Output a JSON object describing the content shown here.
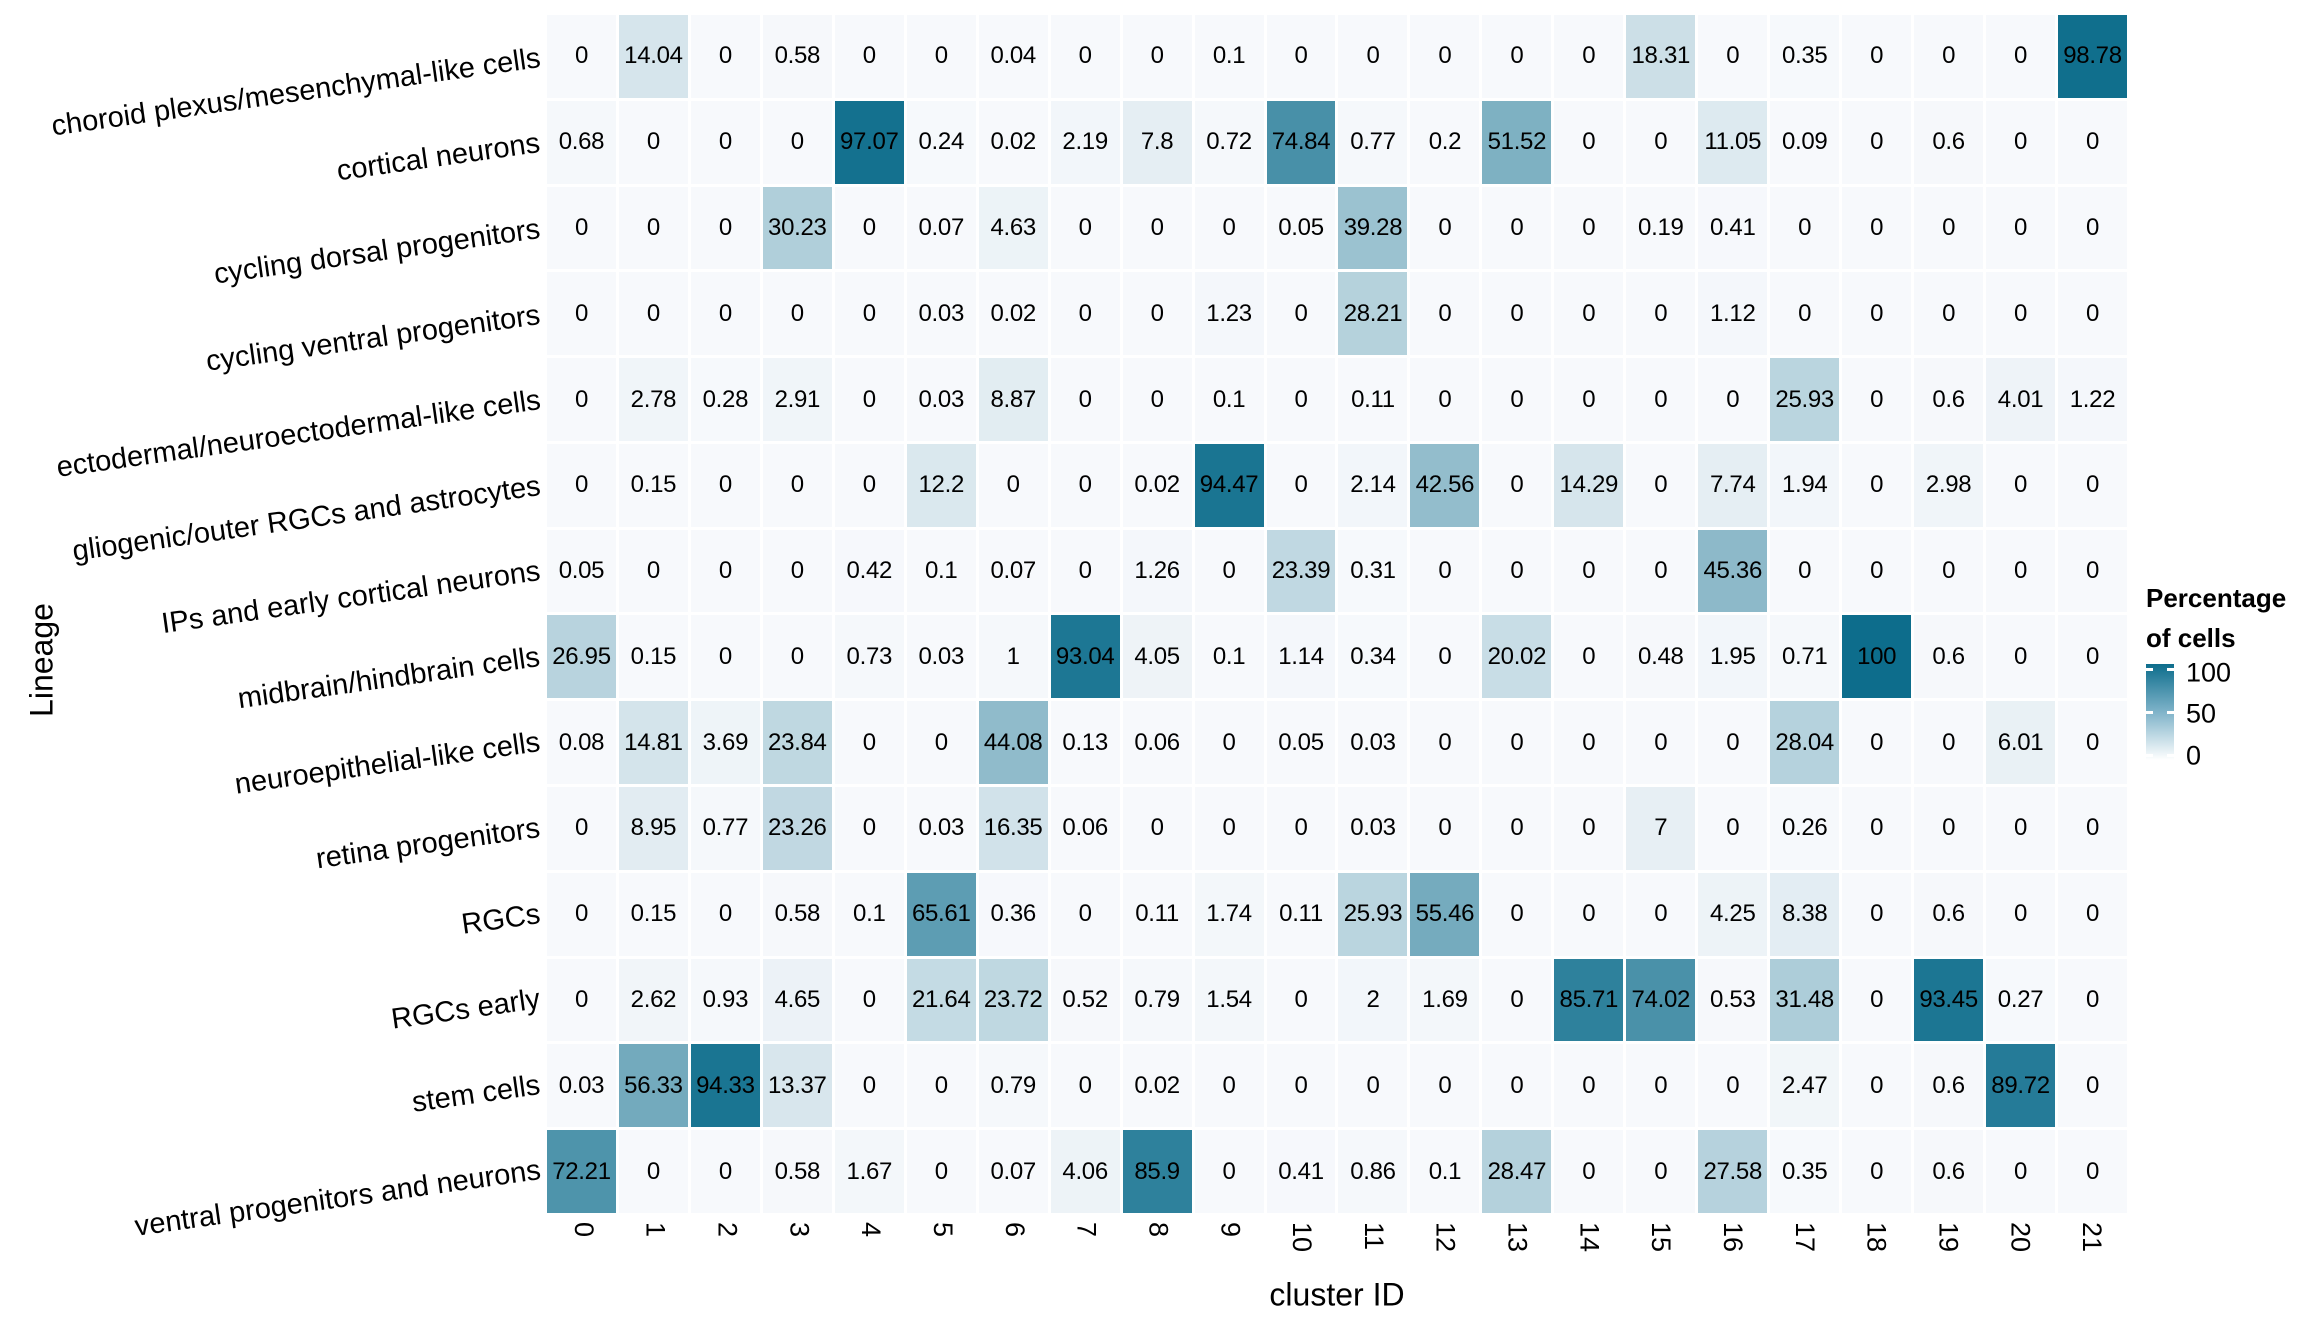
{
  "figure": {
    "background": "#ffffff",
    "text_color": "#000000"
  },
  "chart_data": {
    "type": "heatmap",
    "xlabel": "cluster ID",
    "ylabel": "Lineage",
    "x": [
      "0",
      "1",
      "2",
      "3",
      "4",
      "5",
      "6",
      "7",
      "8",
      "9",
      "10",
      "11",
      "12",
      "13",
      "14",
      "15",
      "16",
      "17",
      "18",
      "19",
      "20",
      "21"
    ],
    "rows": [
      "choroid plexus/mesenchymal-like cells",
      "cortical neurons",
      "cycling dorsal progenitors",
      "cycling ventral progenitors",
      "ectodermal/neuroectodermal-like cells",
      "gliogenic/outer RGCs and astrocytes",
      "IPs and early cortical neurons",
      "midbrain/hindbrain cells",
      "neuroepithelial-like cells",
      "retina progenitors",
      "RGCs",
      "RGCs early",
      "stem cells",
      "ventral progenitors and neurons"
    ],
    "values": [
      [
        0,
        14.04,
        0,
        0.58,
        0,
        0,
        0.04,
        0,
        0,
        0.1,
        0,
        0,
        0,
        0,
        0,
        18.31,
        0,
        0.35,
        0,
        0,
        0,
        98.78
      ],
      [
        0.68,
        0,
        0,
        0,
        97.07,
        0.24,
        0.02,
        2.19,
        7.8,
        0.72,
        74.84,
        0.77,
        0.2,
        51.52,
        0,
        0,
        11.05,
        0.09,
        0,
        0.6,
        0,
        0
      ],
      [
        0,
        0,
        0,
        30.23,
        0,
        0.07,
        4.63,
        0,
        0,
        0,
        0.05,
        39.28,
        0,
        0,
        0,
        0.19,
        0.41,
        0,
        0,
        0,
        0,
        0
      ],
      [
        0,
        0,
        0,
        0,
        0,
        0.03,
        0.02,
        0,
        0,
        1.23,
        0,
        28.21,
        0,
        0,
        0,
        0,
        1.12,
        0,
        0,
        0,
        0,
        0
      ],
      [
        0,
        2.78,
        0.28,
        2.91,
        0,
        0.03,
        8.87,
        0,
        0,
        0.1,
        0,
        0.11,
        0,
        0,
        0,
        0,
        0,
        25.93,
        0,
        0.6,
        4.01,
        1.22
      ],
      [
        0,
        0.15,
        0,
        0,
        0,
        12.2,
        0,
        0,
        0.02,
        94.47,
        0,
        2.14,
        42.56,
        0,
        14.29,
        0,
        7.74,
        1.94,
        0,
        2.98,
        0,
        0
      ],
      [
        0.05,
        0,
        0,
        0,
        0.42,
        0.1,
        0.07,
        0,
        1.26,
        0,
        23.39,
        0.31,
        0,
        0,
        0,
        0,
        45.36,
        0,
        0,
        0,
        0,
        0
      ],
      [
        26.95,
        0.15,
        0,
        0,
        0.73,
        0.03,
        1,
        93.04,
        4.05,
        0.1,
        1.14,
        0.34,
        0,
        20.02,
        0,
        0.48,
        1.95,
        0.71,
        100,
        0.6,
        0,
        0
      ],
      [
        0.08,
        14.81,
        3.69,
        23.84,
        0,
        0,
        44.08,
        0.13,
        0.06,
        0,
        0.05,
        0.03,
        0,
        0,
        0,
        0,
        0,
        28.04,
        0,
        0,
        6.01,
        0
      ],
      [
        0,
        8.95,
        0.77,
        23.26,
        0,
        0.03,
        16.35,
        0.06,
        0,
        0,
        0,
        0.03,
        0,
        0,
        0,
        7,
        0,
        0.26,
        0,
        0,
        0,
        0
      ],
      [
        0,
        0.15,
        0,
        0.58,
        0.1,
        65.61,
        0.36,
        0,
        0.11,
        1.74,
        0.11,
        25.93,
        55.46,
        0,
        0,
        0,
        4.25,
        8.38,
        0,
        0.6,
        0,
        0
      ],
      [
        0,
        2.62,
        0.93,
        4.65,
        0,
        21.64,
        23.72,
        0.52,
        0.79,
        1.54,
        0,
        2,
        1.69,
        0,
        85.71,
        74.02,
        0.53,
        31.48,
        0,
        93.45,
        0.27,
        0
      ],
      [
        0.03,
        56.33,
        94.33,
        13.37,
        0,
        0,
        0.79,
        0,
        0.02,
        0,
        0,
        0,
        0,
        0,
        0,
        0,
        0,
        2.47,
        0,
        0.6,
        89.72,
        0
      ],
      [
        72.21,
        0,
        0,
        0.58,
        1.67,
        0,
        0.07,
        4.06,
        85.9,
        0,
        0.41,
        0.86,
        0.1,
        28.47,
        0,
        0,
        27.58,
        0.35,
        0,
        0.6,
        0,
        0
      ]
    ],
    "colorscale": {
      "min": 0,
      "max": 100,
      "low": "#f7f9fc",
      "high": "#0d6d8c"
    },
    "grid": false,
    "legend": {
      "position": "right",
      "title_lines": [
        "Percentage",
        "of cells"
      ],
      "ticks": [
        "100",
        "50",
        "0"
      ]
    }
  }
}
